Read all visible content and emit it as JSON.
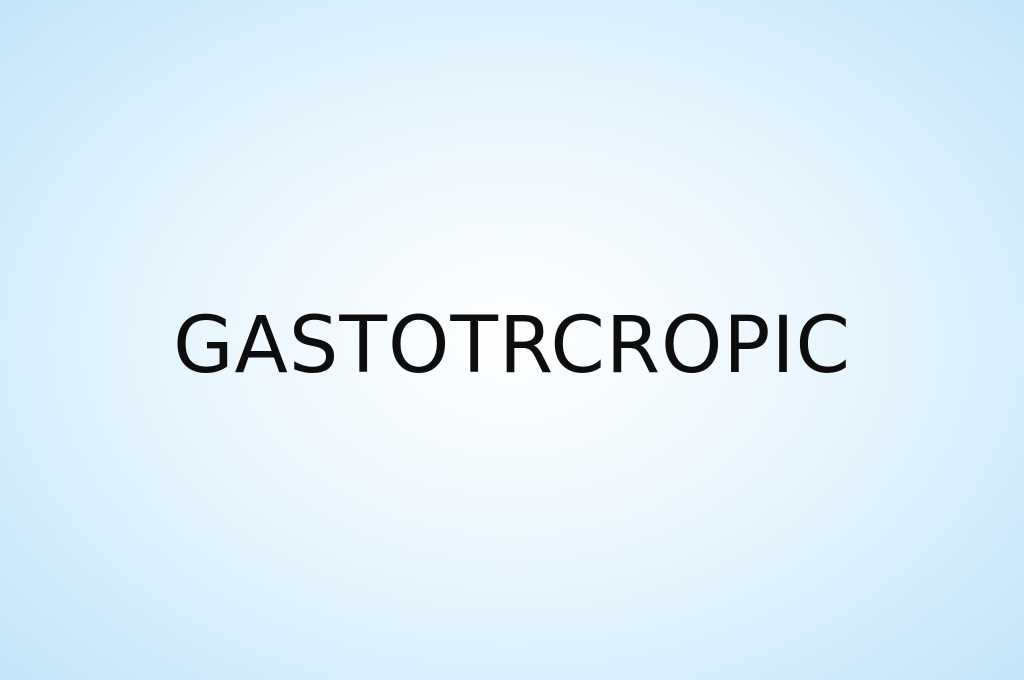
{
  "main": {
    "word": "GASTOTRCROPIC"
  },
  "colors": {
    "background_center": "#ffffff",
    "background_edge": "#c3e4f7",
    "text": "#0d0d0d"
  }
}
